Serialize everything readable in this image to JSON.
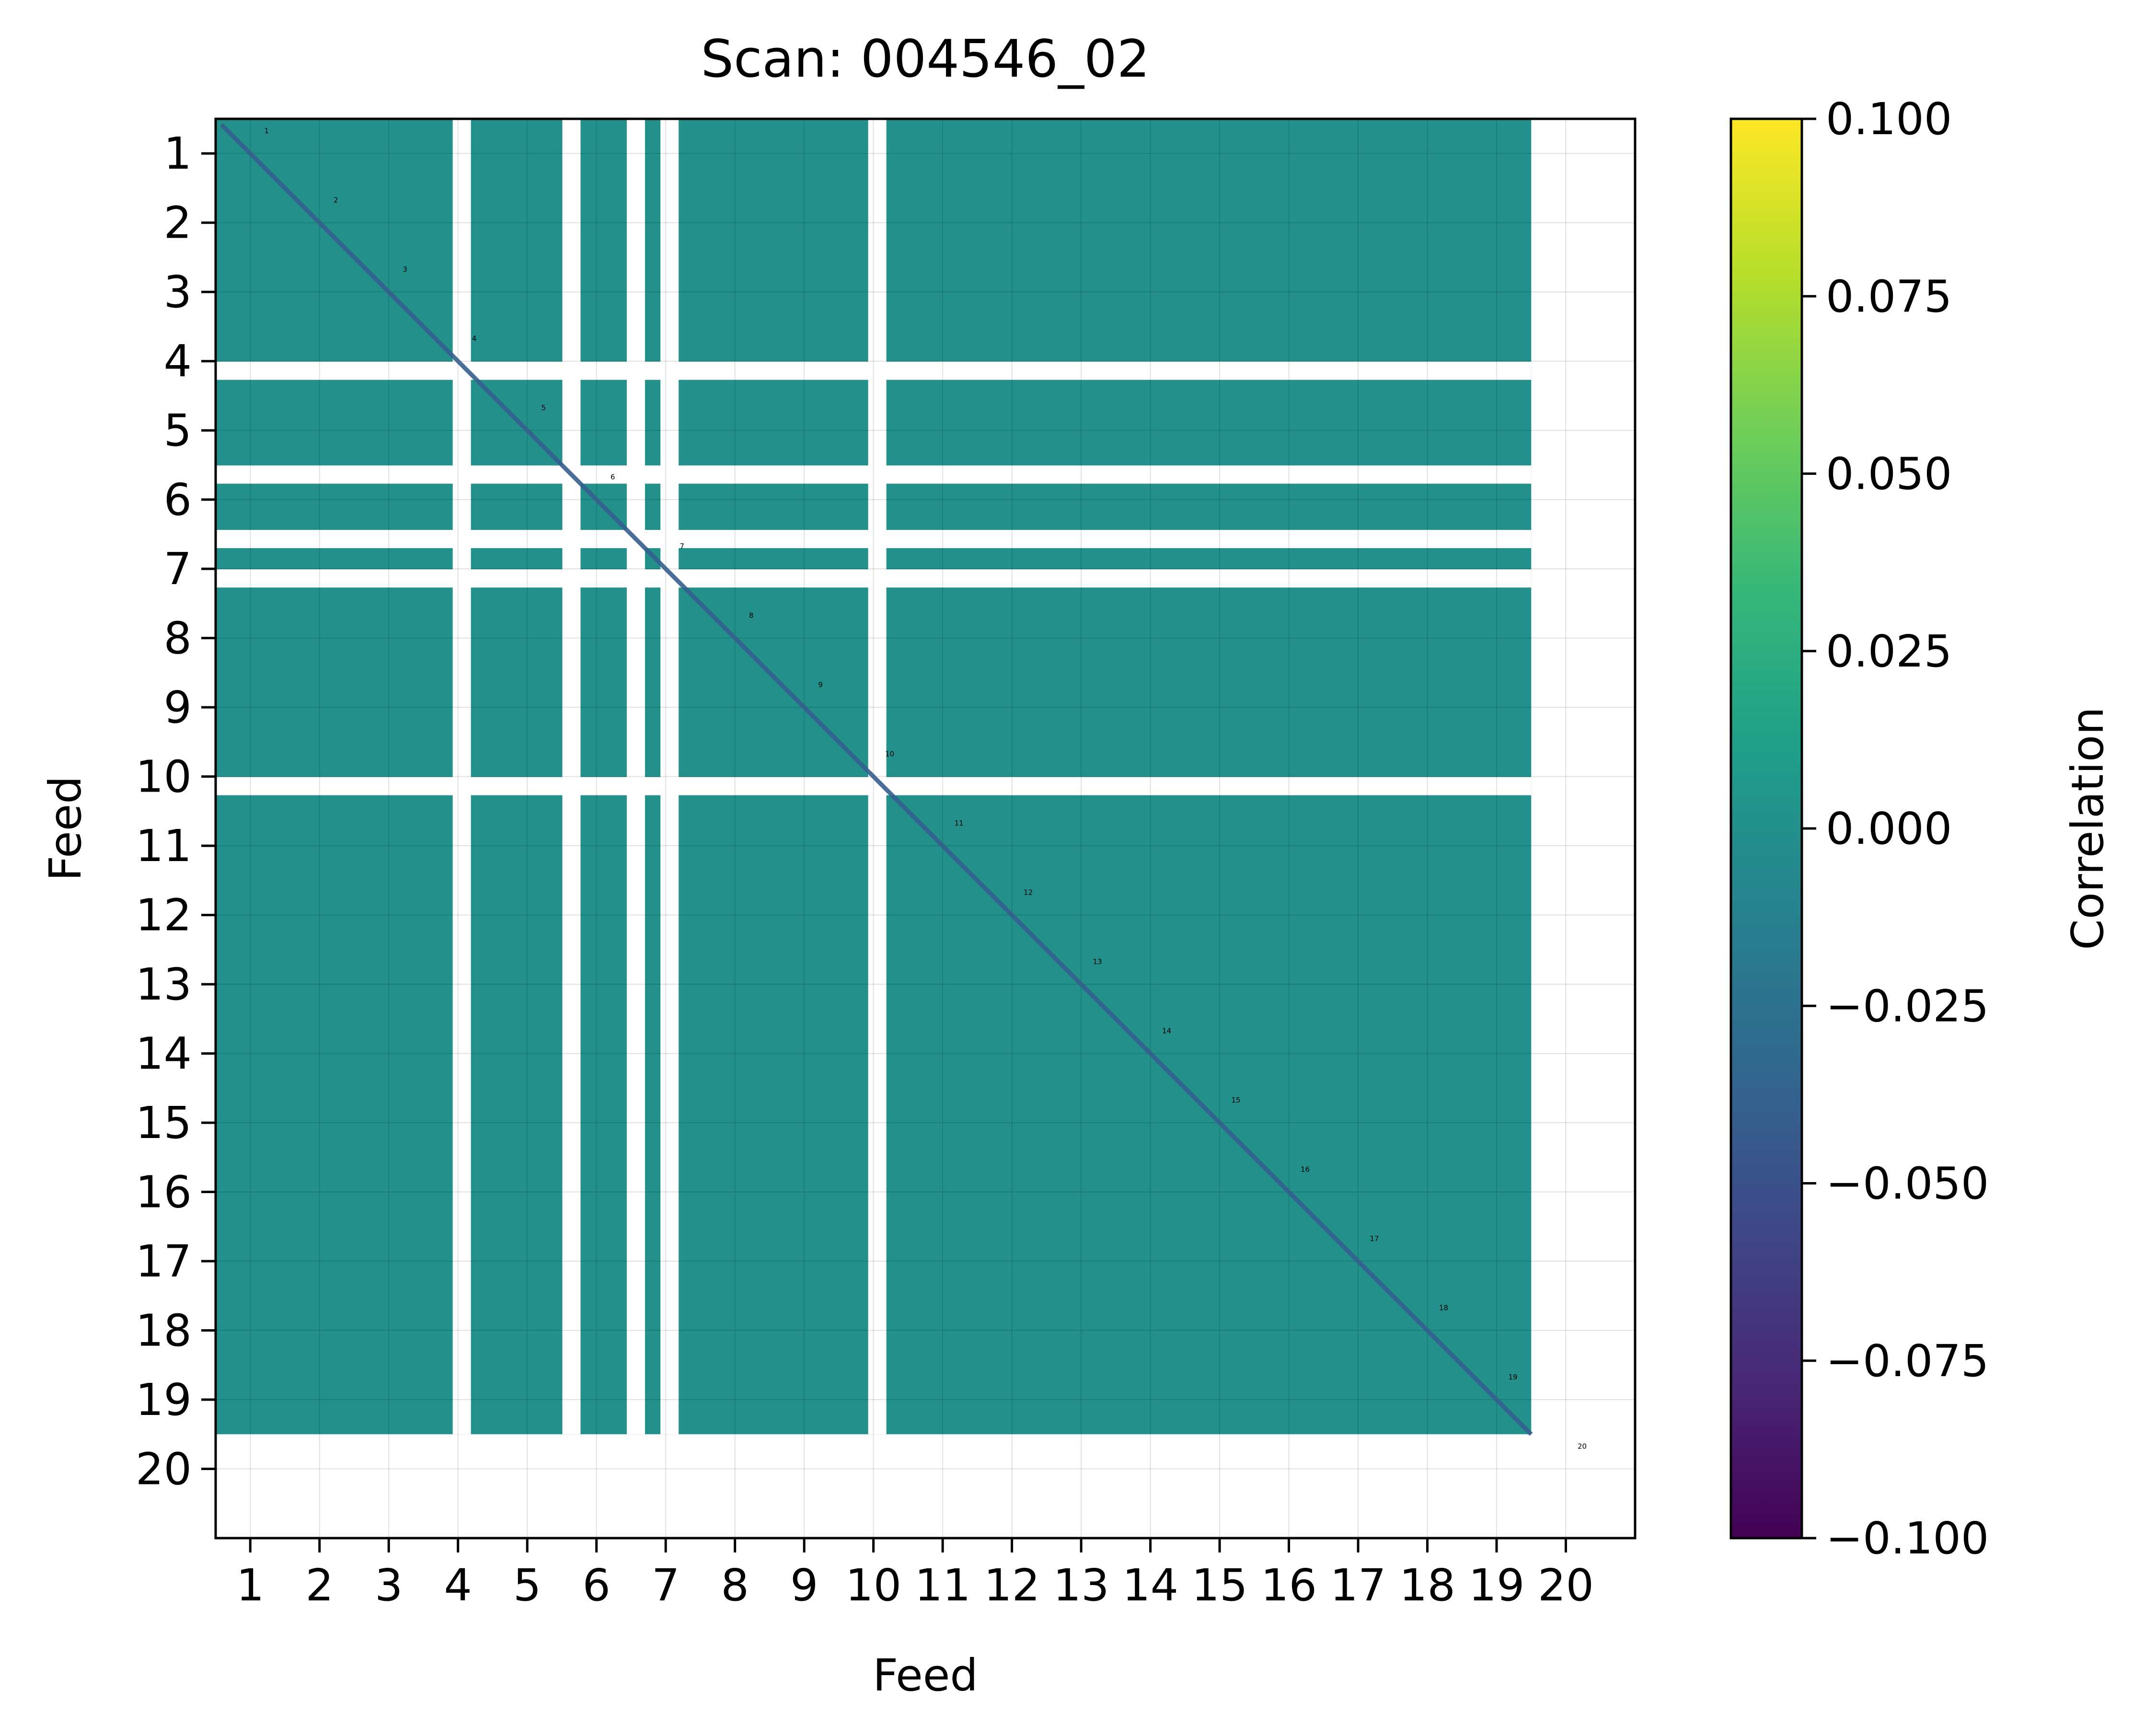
{
  "chart_data": {
    "type": "heatmap",
    "title": "Scan: 004546_02",
    "xlabel": "Feed",
    "ylabel": "Feed",
    "x_categories": [
      "1",
      "2",
      "3",
      "4",
      "5",
      "6",
      "7",
      "8",
      "9",
      "10",
      "11",
      "12",
      "13",
      "14",
      "15",
      "16",
      "17",
      "18",
      "19",
      "20"
    ],
    "y_categories": [
      "1",
      "2",
      "3",
      "4",
      "5",
      "6",
      "7",
      "8",
      "9",
      "10",
      "11",
      "12",
      "13",
      "14",
      "15",
      "16",
      "17",
      "18",
      "19",
      "20"
    ],
    "diagonal_labels": [
      "1",
      "2",
      "3",
      "4",
      "5",
      "6",
      "7",
      "8",
      "9",
      "10",
      "11",
      "12",
      "13",
      "14",
      "15",
      "16",
      "17",
      "18",
      "19",
      "20"
    ],
    "grid": true,
    "off_diagonal_value": 0.0,
    "diagonal_value": -0.04,
    "masked_feeds_x": [
      4,
      5,
      6,
      7,
      10,
      20
    ],
    "masked_feeds_y": [
      4,
      5,
      6,
      7,
      10,
      20
    ],
    "mask_color": "#ffffff",
    "colorbar": {
      "label": "Correlation",
      "colormap": "viridis",
      "vmin": -0.1,
      "vmax": 0.1,
      "ticks": [
        0.1,
        0.075,
        0.05,
        0.025,
        0.0,
        -0.025,
        -0.05,
        -0.075,
        -0.1
      ],
      "tick_labels": [
        "0.100",
        "0.075",
        "0.050",
        "0.025",
        "0.000",
        "−0.025",
        "−0.050",
        "−0.075",
        "−0.100"
      ],
      "colors": [
        "#440154",
        "#482878",
        "#3e4989",
        "#31688e",
        "#26828e",
        "#1f9e89",
        "#35b779",
        "#6ece58",
        "#b5de2b",
        "#fde725"
      ]
    }
  }
}
